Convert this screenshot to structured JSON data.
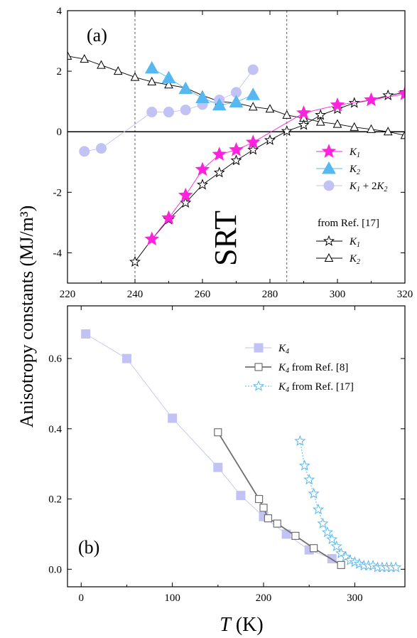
{
  "figure": {
    "ylabel": "Anisotropy constants (MJ/m³)",
    "xlabel": {
      "symbol": "T",
      "unit": " (K)"
    }
  },
  "chart_data": [
    {
      "type": "line",
      "panel_label": "(a)",
      "annotation": "SRT",
      "xlim": [
        220,
        320
      ],
      "ylim": [
        -5,
        4
      ],
      "x_ticks": [
        220,
        240,
        260,
        280,
        300,
        320
      ],
      "y_ticks": [
        -4,
        -2,
        0,
        2,
        4
      ],
      "vlines": [
        240,
        285
      ],
      "hline": 0,
      "legend_header": "from Ref. [17]",
      "series": [
        {
          "name": "K1",
          "legend_main": "K",
          "legend_sub": "1",
          "marker": "star-filled",
          "color": "#ff22dd",
          "x": [
            245,
            250,
            255,
            260,
            265,
            270,
            275,
            290,
            300,
            310,
            320
          ],
          "y": [
            -3.55,
            -2.85,
            -2.1,
            -1.25,
            -0.75,
            -0.6,
            -0.35,
            0.62,
            0.88,
            1.05,
            1.25
          ]
        },
        {
          "name": "K2",
          "legend_main": "K",
          "legend_sub": "2",
          "marker": "triangle-filled",
          "color": "#55b8f0",
          "x": [
            245,
            250,
            255,
            260,
            265,
            270,
            275
          ],
          "y": [
            2.1,
            1.78,
            1.42,
            1.12,
            0.88,
            0.98,
            1.22
          ]
        },
        {
          "name": "K1 + 2K2",
          "legend_main": "K",
          "legend_sub": "1",
          "legend_rest": " + 2",
          "legend_main2": "K",
          "legend_sub2": "2",
          "marker": "circle-filled",
          "color": "#c2c2f5",
          "x": [
            225,
            230,
            245,
            250,
            255,
            260,
            265,
            270,
            275
          ],
          "y": [
            -0.65,
            -0.55,
            0.65,
            0.65,
            0.72,
            0.9,
            1.05,
            1.3,
            2.05
          ]
        },
        {
          "name": "K1 from Ref. [17]",
          "legend_main": "K",
          "legend_sub": "1",
          "marker": "star-open",
          "color": "#000000",
          "x": [
            240,
            245,
            250,
            255,
            260,
            265,
            270,
            275,
            280,
            285,
            290,
            295,
            300,
            305,
            310,
            315,
            320
          ],
          "y": [
            -4.3,
            -3.55,
            -2.9,
            -2.35,
            -1.75,
            -1.35,
            -0.95,
            -0.6,
            -0.28,
            0.02,
            0.22,
            0.55,
            0.75,
            0.95,
            1.05,
            1.2,
            1.3
          ]
        },
        {
          "name": "K2 from Ref. [17]",
          "legend_main": "K",
          "legend_sub": "2",
          "marker": "triangle-open",
          "color": "#000000",
          "x": [
            220,
            225,
            230,
            235,
            240,
            245,
            250,
            255,
            260,
            265,
            270,
            275,
            280,
            285,
            290,
            295,
            300,
            305,
            310,
            315,
            320
          ],
          "y": [
            2.5,
            2.4,
            2.2,
            2.0,
            1.8,
            1.65,
            1.55,
            1.45,
            1.2,
            1.0,
            0.95,
            0.82,
            0.75,
            0.55,
            0.45,
            0.32,
            0.25,
            0.15,
            0.08,
            0.0,
            -0.12
          ]
        }
      ]
    },
    {
      "type": "line",
      "panel_label": "(b)",
      "xlim": [
        -15,
        355
      ],
      "ylim": [
        -0.05,
        0.75
      ],
      "x_ticks": [
        0,
        100,
        200,
        300
      ],
      "y_ticks": [
        0.0,
        0.2,
        0.4,
        0.6
      ],
      "y_tick_labels": [
        "0.0",
        "0.2",
        "0.4",
        "0.6"
      ],
      "series": [
        {
          "name": "K4",
          "legend_main": "K",
          "legend_sub": "4",
          "marker": "square-filled",
          "color": "#c2c2f5",
          "x": [
            5,
            50,
            100,
            150,
            175,
            200,
            225,
            250,
            275
          ],
          "y": [
            0.67,
            0.6,
            0.43,
            0.29,
            0.21,
            0.15,
            0.1,
            0.055,
            0.03
          ]
        },
        {
          "name": "K4 from Ref. [8]",
          "legend_main": "K",
          "legend_sub": "4",
          "legend_rest": " from Ref. [8]",
          "marker": "square-open",
          "color": "#707070",
          "x": [
            150,
            195,
            200,
            205,
            215,
            235,
            255,
            285
          ],
          "y": [
            0.39,
            0.2,
            0.175,
            0.145,
            0.13,
            0.095,
            0.06,
            0.012
          ]
        },
        {
          "name": "K4 from Ref. [17]",
          "legend_main": "K",
          "legend_sub": "4",
          "legend_rest": " from Ref. [17]",
          "marker": "star-open",
          "color": "#55b8f0",
          "x": [
            240,
            245,
            250,
            255,
            260,
            265,
            270,
            275,
            280,
            285,
            290,
            295,
            300,
            305,
            310,
            315,
            320,
            325,
            330,
            335,
            340,
            345
          ],
          "y": [
            0.365,
            0.295,
            0.255,
            0.215,
            0.17,
            0.13,
            0.105,
            0.085,
            0.065,
            0.045,
            0.035,
            0.025,
            0.02,
            0.015,
            0.01,
            0.01,
            0.01,
            0.005,
            0.005,
            0.005,
            0.005,
            0.005
          ]
        }
      ]
    }
  ]
}
